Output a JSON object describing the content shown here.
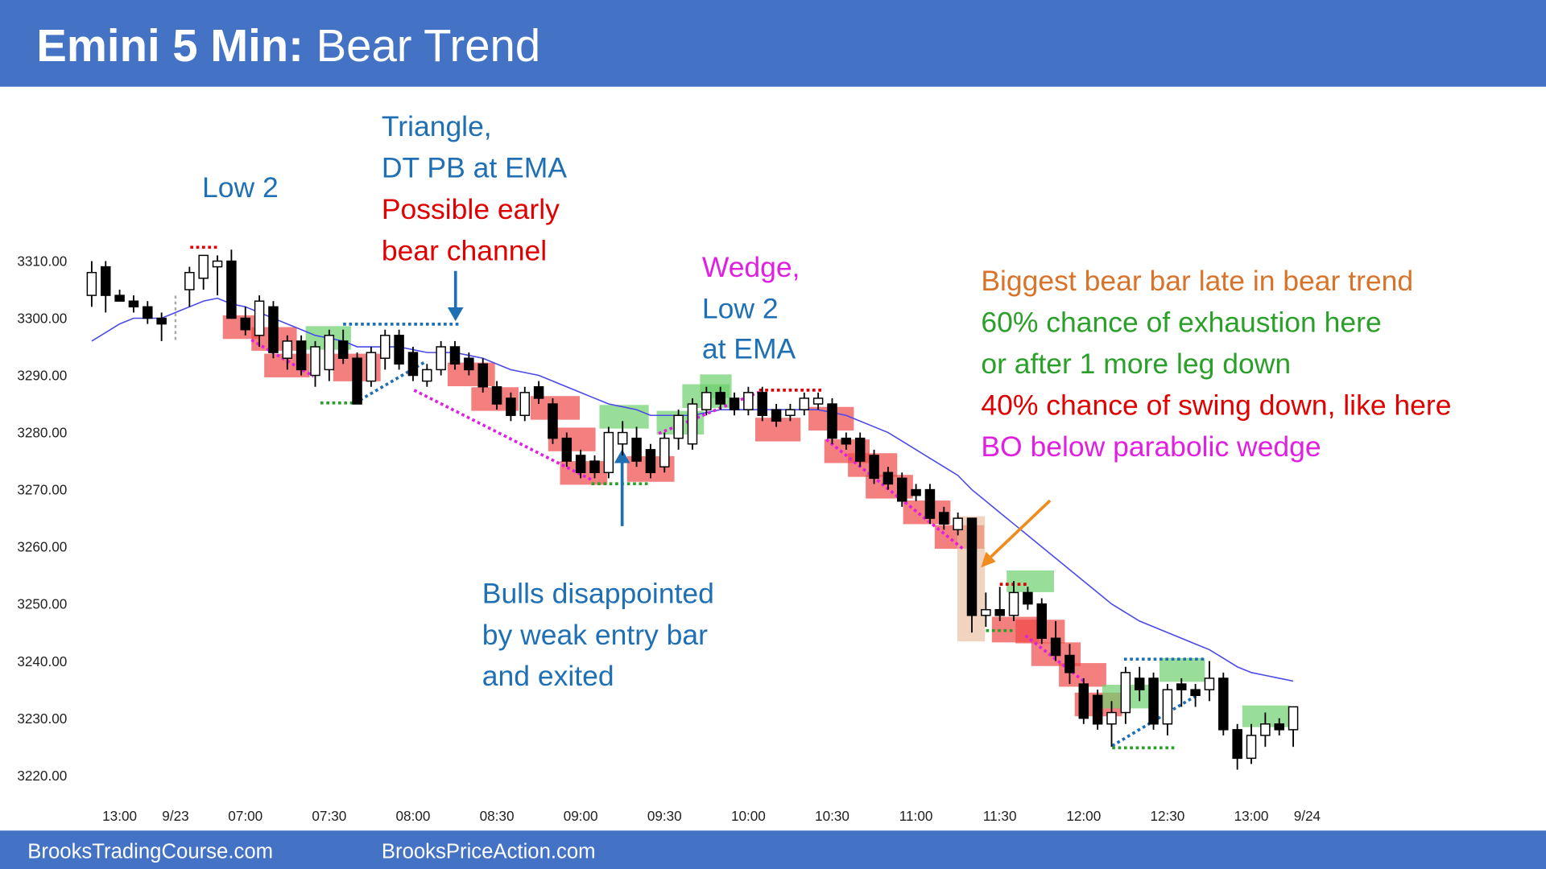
{
  "header": {
    "title_bold": "Emini 5 Min:",
    "title": "Bear Trend",
    "color": "#4472c4"
  },
  "footer": {
    "left": "BrooksTradingCourse.com",
    "right": "BrooksPriceAction.com"
  },
  "chart_data": {
    "type": "candlestick",
    "categories": [
      null,
      null,
      "13:00",
      null,
      null,
      null,
      "9/23",
      null,
      null,
      null,
      null,
      "07:00",
      null,
      null,
      null,
      null,
      null,
      "07:30",
      null,
      null,
      null,
      null,
      null,
      "08:00",
      null,
      null,
      null,
      null,
      null,
      "08:30",
      null,
      null,
      null,
      null,
      null,
      "09:00",
      null,
      null,
      null,
      null,
      null,
      "09:30",
      null,
      null,
      null,
      null,
      null,
      "10:00",
      null,
      null,
      null,
      null,
      null,
      "10:30",
      null,
      null,
      null,
      null,
      null,
      "11:00",
      null,
      null,
      null,
      null,
      null,
      "11:30",
      null,
      null,
      null,
      null,
      null,
      "12:00",
      null,
      null,
      null,
      null,
      null,
      "12:30",
      null,
      null,
      null,
      null,
      null,
      "13:00",
      null,
      null,
      null,
      "9/24"
    ],
    "open": [
      3304,
      3309,
      3304,
      3303,
      3302,
      3300,
      null,
      3305,
      3307,
      3309,
      3310,
      3300,
      3297,
      3302,
      3293,
      3296,
      3290,
      3291,
      3296,
      3293,
      3289,
      3293,
      3297,
      3294,
      3289,
      3291,
      3295,
      3293,
      3292,
      3288,
      3286,
      3283,
      3288,
      3285,
      3279,
      3276,
      3275,
      3273,
      3278,
      3279,
      3277,
      3274,
      3279,
      3278,
      3284,
      3287,
      3286,
      3284,
      3287,
      3284,
      3283,
      3284,
      3285,
      3285,
      3279,
      3279,
      3276,
      3273,
      3272,
      3270,
      3270,
      3266,
      3263,
      3265,
      3248,
      3249,
      3248,
      3252,
      3250,
      3244,
      3241,
      3236,
      3234,
      3229,
      3231,
      3237,
      3237,
      3229,
      3236,
      3235,
      3235,
      3237,
      3228,
      3223,
      3227,
      3229,
      3228,
      null
    ],
    "high": [
      3310,
      3310,
      3305,
      3304,
      3303,
      3301,
      null,
      3309,
      3311,
      3311,
      3312,
      3302,
      3304,
      3303,
      3297,
      3297,
      3296,
      3298,
      3298,
      3294,
      3295,
      3298,
      3298,
      3295,
      3292,
      3296,
      3296,
      3294,
      3293,
      3289,
      3287,
      3288,
      3289,
      3286,
      3280,
      3277,
      3276,
      3281,
      3282,
      3281,
      3278,
      3280,
      3284,
      3286,
      3288,
      3288,
      3287,
      3288,
      3288,
      3285,
      3285,
      3287,
      3287,
      3286,
      3280,
      3280,
      3277,
      3274,
      3273,
      3271,
      3271,
      3267,
      3266,
      3265,
      3252,
      3253,
      3254,
      3253,
      3251,
      3247,
      3243,
      3237,
      3235,
      3233,
      3239,
      3239,
      3238,
      3236,
      3237,
      3236,
      3240,
      3238,
      3229,
      3229,
      3231,
      3230,
      3232,
      null
    ],
    "low": [
      3302,
      3301,
      3303,
      3301,
      3299,
      3296,
      null,
      3302,
      3305,
      3304,
      3300,
      3297,
      3295,
      3293,
      3291,
      3290,
      3288,
      3289,
      3292,
      3285,
      3288,
      3291,
      3291,
      3289,
      3288,
      3290,
      3291,
      3290,
      3287,
      3284,
      3282,
      3282,
      3285,
      3278,
      3274,
      3272,
      3272,
      3272,
      3276,
      3274,
      3272,
      3273,
      3277,
      3277,
      3283,
      3284,
      3283,
      3283,
      3282,
      3281,
      3282,
      3283,
      3284,
      3278,
      3277,
      3274,
      3271,
      3270,
      3267,
      3268,
      3264,
      3263,
      3262,
      3245,
      3246,
      3247,
      3247,
      3249,
      3243,
      3240,
      3236,
      3229,
      3228,
      3225,
      3229,
      3233,
      3228,
      3227,
      3232,
      3232,
      3233,
      3227,
      3221,
      3222,
      3225,
      3227,
      3225,
      null
    ],
    "close": [
      3308,
      3304,
      3303,
      3302,
      3300,
      3299,
      null,
      3308,
      3311,
      3310,
      3300,
      3298,
      3303,
      3294,
      3296,
      3291,
      3295,
      3297,
      3293,
      3285,
      3294,
      3297,
      3292,
      3290,
      3291,
      3295,
      3292,
      3291,
      3288,
      3285,
      3283,
      3287,
      3286,
      3279,
      3275,
      3273,
      3273,
      3280,
      3280,
      3275,
      3273,
      3279,
      3283,
      3285,
      3287,
      3285,
      3284,
      3287,
      3283,
      3282,
      3284,
      3286,
      3286,
      3279,
      3278,
      3275,
      3272,
      3271,
      3268,
      3269,
      3265,
      3264,
      3265,
      3248,
      3249,
      3248,
      3252,
      3250,
      3244,
      3241,
      3238,
      3230,
      3229,
      3231,
      3238,
      3235,
      3229,
      3235,
      3235,
      3234,
      3237,
      3228,
      3223,
      3227,
      3229,
      3228,
      3232,
      null
    ],
    "ema": {
      "color": "#4a4ae8",
      "values": [
        3296,
        3297.5,
        3299,
        3300,
        3300,
        3300,
        3301,
        3302,
        3303,
        3303.5,
        3302.5,
        3302,
        3301,
        3300,
        3299,
        3298,
        3297,
        3296.5,
        3296,
        3295,
        3295,
        3295,
        3295,
        3294.5,
        3294,
        3294,
        3294,
        3293.5,
        3293,
        3292,
        3291,
        3290.5,
        3290,
        3289,
        3288,
        3287,
        3286,
        3285,
        3284.5,
        3284,
        3283,
        3283,
        3283,
        3283,
        3283.5,
        3284,
        3284,
        3284,
        3284,
        3284,
        3284,
        3284,
        3284,
        3283.5,
        3283,
        3282,
        3281,
        3280,
        3278.5,
        3277,
        3275.5,
        3274,
        3272.5,
        3270,
        3268,
        3266,
        3264,
        3262,
        3260,
        3258,
        3256,
        3254,
        3252,
        3250,
        3248.5,
        3247,
        3246,
        3245,
        3244,
        3243,
        3242,
        3240.5,
        3239,
        3238,
        3237.5,
        3237,
        3236.5,
        null
      ]
    },
    "ylim": [
      3220,
      3310
    ],
    "yticks": [
      {
        "value": 3220,
        "label": "3220.00"
      },
      {
        "value": 3230,
        "label": "3230.00"
      },
      {
        "value": 3240,
        "label": "3240.00"
      },
      {
        "value": 3250,
        "label": "3250.00"
      },
      {
        "value": 3260,
        "label": "3260.00"
      },
      {
        "value": 3270,
        "label": "3270.00"
      },
      {
        "value": 3280,
        "label": "3280.00"
      },
      {
        "value": 3290,
        "label": "3290.00"
      },
      {
        "value": 3300,
        "label": "3300.00"
      },
      {
        "value": 3310,
        "label": "3310.00"
      }
    ],
    "grid": false,
    "annotations": [
      {
        "text": "Low 2",
        "color": "#1f6fb5"
      },
      {
        "text": "Triangle,",
        "color": "#1f6fb5"
      },
      {
        "text": "DT PB at EMA",
        "color": "#1f6fb5"
      },
      {
        "text": "Possible early",
        "color": "#e00000"
      },
      {
        "text": "bear channel",
        "color": "#e00000"
      },
      {
        "text": "Wedge,",
        "color": "#e020e0"
      },
      {
        "text": "Low 2",
        "color": "#1f6fb5"
      },
      {
        "text": "at EMA",
        "color": "#1f6fb5"
      },
      {
        "text": "Biggest bear bar late in bear trend",
        "color": "#d9732a"
      },
      {
        "text": "60% chance of exhaustion here",
        "color": "#2aa02a"
      },
      {
        "text": "or after 1 more leg down",
        "color": "#2aa02a"
      },
      {
        "text": "40% chance of swing down, like here",
        "color": "#e00000"
      },
      {
        "text": "BO below parabolic wedge",
        "color": "#e020e0"
      },
      {
        "text": "Bulls disappointed",
        "color": "#1f6fb5"
      },
      {
        "text": "by weak entry bar",
        "color": "#1f6fb5"
      },
      {
        "text": "and exited",
        "color": "#1f6fb5"
      }
    ]
  }
}
